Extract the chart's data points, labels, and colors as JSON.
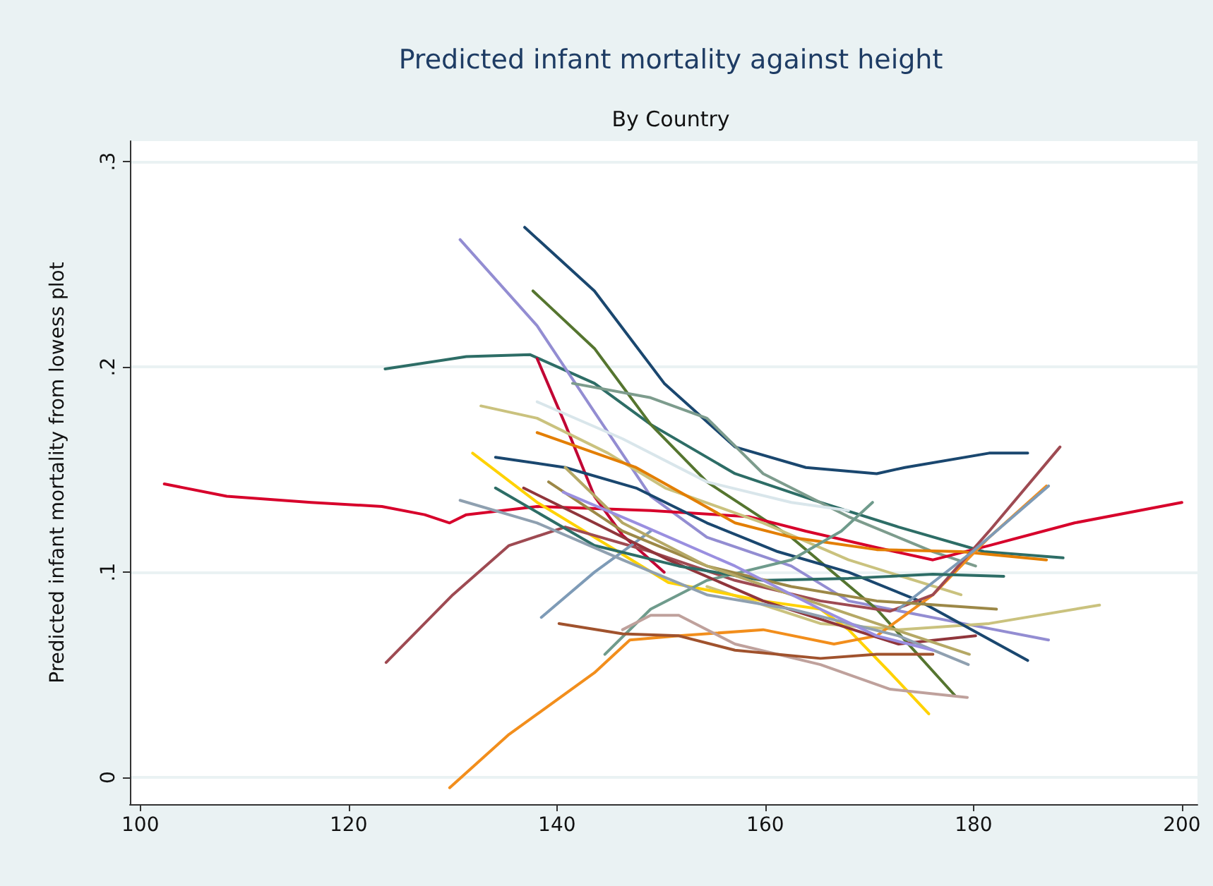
{
  "chart_data": {
    "type": "line",
    "title": "Predicted infant mortality against height",
    "subtitle": "By Country",
    "ylabel": "Predicted infant mortality from lowess plot",
    "xlim": [
      99,
      201.5
    ],
    "ylim": [
      -0.013,
      0.31
    ],
    "xticks": [
      100,
      120,
      140,
      160,
      180,
      200
    ],
    "yticks": [
      {
        "value": 0,
        "label": "0"
      },
      {
        "value": 0.1,
        "label": ".1"
      },
      {
        "value": 0.2,
        "label": ".2"
      },
      {
        "value": 0.3,
        "label": ".3"
      }
    ],
    "grid": "y",
    "marker": "none",
    "line_style": "solid",
    "series": [
      {
        "color": "#1a476f",
        "x": [
          136.9,
          143.6,
          150.3,
          157.1,
          163.9,
          170.7,
          173.4,
          181.5,
          185.2
        ],
        "values": [
          0.268,
          0.237,
          0.192,
          0.161,
          0.151,
          0.148,
          0.151,
          0.158,
          0.158
        ]
      },
      {
        "color": "#2d6d66",
        "x": [
          123.5,
          131.3,
          137.4,
          143.6,
          149,
          157.1,
          165.3,
          172.8,
          181,
          188.6
        ],
        "values": [
          0.199,
          0.205,
          0.206,
          0.192,
          0.172,
          0.148,
          0.134,
          0.122,
          0.11,
          0.107
        ]
      },
      {
        "color": "#938dd2",
        "x": [
          130.7,
          138.1,
          143.6,
          149,
          154.4,
          162.5,
          168,
          179,
          187.2
        ],
        "values": [
          0.262,
          0.22,
          0.178,
          0.137,
          0.117,
          0.103,
          0.086,
          0.075,
          0.067
        ]
      },
      {
        "color": "#55752f",
        "x": [
          137.7,
          143.6,
          149,
          154.4,
          162.5,
          170.7,
          178.2
        ],
        "values": [
          0.237,
          0.209,
          0.172,
          0.144,
          0.117,
          0.082,
          0.04
        ]
      },
      {
        "color": "#7d9c8d",
        "x": [
          141.5,
          149,
          154.4,
          159.8,
          168,
          176.1,
          180.2
        ],
        "values": [
          0.192,
          0.185,
          0.175,
          0.148,
          0.127,
          0.11,
          0.103
        ]
      },
      {
        "color": "#c10534",
        "x": [
          138.1,
          140.8,
          143.6,
          146.3,
          150.3
        ],
        "values": [
          0.204,
          0.172,
          0.137,
          0.118,
          0.1
        ]
      },
      {
        "color": "#d7002b",
        "x": [
          102.3,
          108.3,
          116.4,
          123.2,
          127.3,
          129.7,
          131.3,
          138.1,
          149,
          158.5,
          163.9,
          170.7,
          176.1,
          181.5,
          189.7,
          200
        ],
        "values": [
          0.143,
          0.137,
          0.134,
          0.132,
          0.128,
          0.124,
          0.128,
          0.132,
          0.13,
          0.127,
          0.12,
          0.112,
          0.106,
          0.113,
          0.124,
          0.134
        ]
      },
      {
        "color": "#d9e6eb",
        "x": [
          138.1,
          146.3,
          154.4,
          162.5,
          168
        ],
        "values": [
          0.183,
          0.165,
          0.144,
          0.134,
          0.13
        ]
      },
      {
        "color": "#cac27e",
        "x": [
          132.7,
          138.1,
          144.9,
          150.4,
          159.8,
          168,
          178.8
        ],
        "values": [
          0.181,
          0.175,
          0.158,
          0.141,
          0.124,
          0.106,
          0.089
        ]
      },
      {
        "color": "#cac27e",
        "x": [
          154.4,
          165.3,
          172.8,
          181.5,
          192.1
        ],
        "values": [
          0.093,
          0.075,
          0.072,
          0.075,
          0.084
        ]
      },
      {
        "color": "#e37e00",
        "x": [
          138.1,
          147.6,
          157.1,
          162.5,
          170.7,
          178.8,
          187
        ],
        "values": [
          0.168,
          0.151,
          0.124,
          0.117,
          0.111,
          0.11,
          0.106
        ]
      },
      {
        "color": "#1a476f",
        "x": [
          134.1,
          140.8,
          147.6,
          154.4,
          161.2,
          168,
          174.8,
          185.2
        ],
        "values": [
          0.156,
          0.151,
          0.141,
          0.124,
          0.11,
          0.1,
          0.086,
          0.057
        ]
      },
      {
        "color": "#ffd200",
        "x": [
          131.9,
          138.1,
          144.9,
          150.7,
          159.8,
          165.3,
          168,
          172,
          175.7
        ],
        "values": [
          0.158,
          0.134,
          0.113,
          0.095,
          0.086,
          0.082,
          0.072,
          0.051,
          0.031
        ]
      },
      {
        "color": "#f28e1c",
        "x": [
          129.7,
          135.4,
          143.6,
          147,
          151.7,
          159.8,
          166.6,
          170.7,
          176.1,
          181.5,
          187
        ],
        "values": [
          -0.005,
          0.021,
          0.051,
          0.067,
          0.069,
          0.072,
          0.065,
          0.069,
          0.089,
          0.117,
          0.142
        ]
      },
      {
        "color": "#9e4a52",
        "x": [
          123.6,
          130,
          135.4,
          140.8,
          149,
          157.1,
          165.3,
          172,
          176.1,
          181.5,
          188.3
        ],
        "values": [
          0.056,
          0.089,
          0.113,
          0.122,
          0.11,
          0.096,
          0.086,
          0.081,
          0.089,
          0.12,
          0.161
        ]
      },
      {
        "color": "#7e9bb7",
        "x": [
          138.5,
          143.6,
          149
        ],
        "values": [
          0.078,
          0.1,
          0.12
        ]
      },
      {
        "color": "#7e9bb7",
        "x": [
          172.8,
          179.9,
          187.2
        ],
        "values": [
          0.082,
          0.11,
          0.142
        ]
      },
      {
        "color": "#6f9b8c",
        "x": [
          144.6,
          149,
          154.4,
          162.5,
          167.3,
          170.3
        ],
        "values": [
          0.06,
          0.082,
          0.096,
          0.106,
          0.12,
          0.134
        ]
      },
      {
        "color": "#bfa19c",
        "x": [
          146.3,
          149,
          151.7,
          157.1,
          165.3,
          172,
          179.4
        ],
        "values": [
          0.072,
          0.079,
          0.079,
          0.065,
          0.055,
          0.043,
          0.039
        ]
      },
      {
        "color": "#a0522d",
        "x": [
          140.2,
          146.3,
          151.7,
          157.1,
          165.3,
          170.7,
          176.1
        ],
        "values": [
          0.075,
          0.07,
          0.069,
          0.062,
          0.058,
          0.06,
          0.06
        ]
      },
      {
        "color": "#90353b",
        "x": [
          136.8,
          143.6,
          150.7,
          159.8,
          166.6,
          172.8,
          180.2
        ],
        "values": [
          0.141,
          0.124,
          0.106,
          0.086,
          0.075,
          0.065,
          0.069
        ]
      },
      {
        "color": "#2d6d66",
        "x": [
          134.1,
          143.6,
          151.7,
          159.8,
          168,
          176.1,
          182.9
        ],
        "values": [
          0.141,
          0.113,
          0.103,
          0.096,
          0.097,
          0.099,
          0.098
        ]
      },
      {
        "color": "#9c8847",
        "x": [
          139.2,
          146.3,
          154.4,
          162.5,
          170.7,
          182.2
        ],
        "values": [
          0.144,
          0.12,
          0.103,
          0.093,
          0.086,
          0.082
        ]
      },
      {
        "color": "#8fa0b0",
        "x": [
          130.7,
          138.1,
          146.3,
          154.4,
          162.5,
          172.8,
          179.5
        ],
        "values": [
          0.135,
          0.124,
          0.106,
          0.089,
          0.082,
          0.069,
          0.055
        ]
      },
      {
        "color": "#b5a865",
        "x": [
          140.8,
          146.3,
          154.4,
          162.5,
          170.7,
          179.6
        ],
        "values": [
          0.151,
          0.124,
          0.103,
          0.089,
          0.075,
          0.06
        ]
      },
      {
        "color": "#9a8fe0",
        "x": [
          140.6,
          147.6,
          157.1,
          165.3,
          170.7,
          176.1
        ],
        "values": [
          0.139,
          0.124,
          0.103,
          0.082,
          0.069,
          0.062
        ]
      }
    ]
  }
}
